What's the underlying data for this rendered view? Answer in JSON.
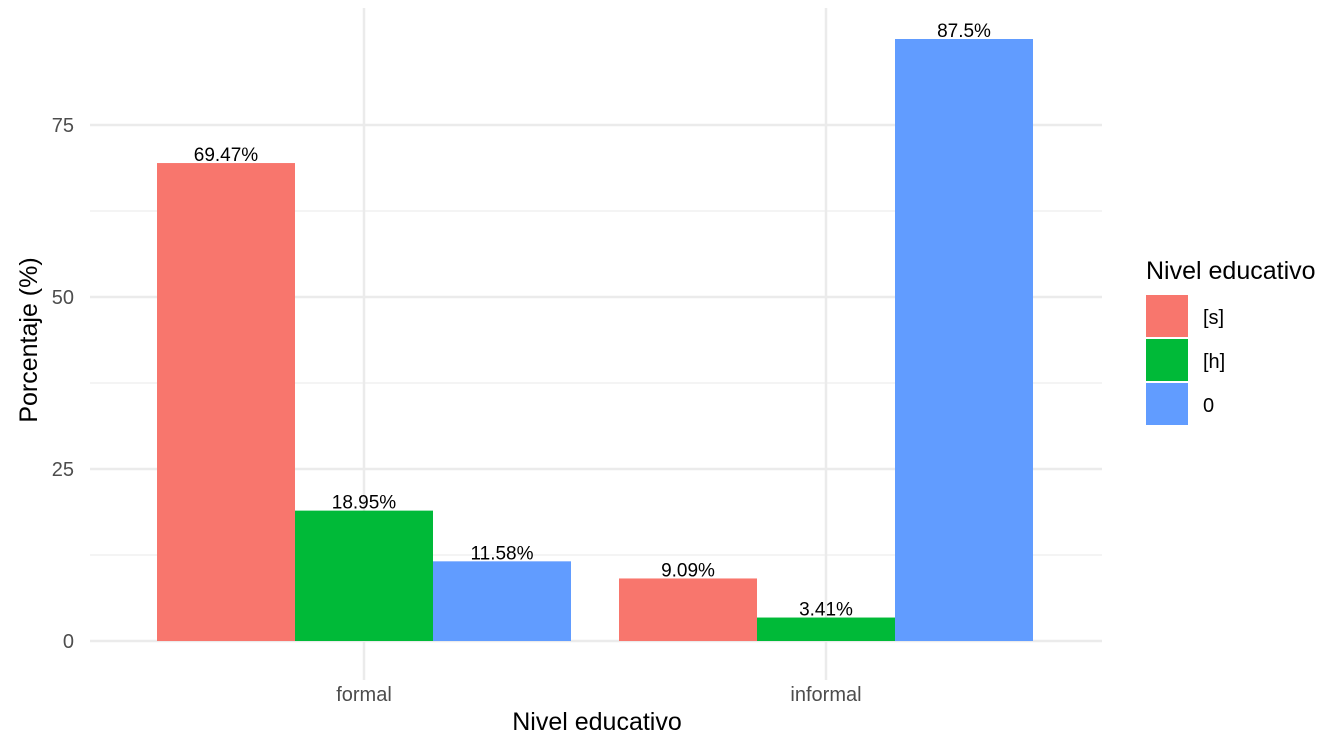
{
  "chart_data": {
    "type": "bar",
    "categories": [
      "formal",
      "informal"
    ],
    "series": [
      {
        "name": "[s]",
        "color": "#F8766D",
        "values": [
          69.47,
          9.09
        ],
        "labels": [
          "69.47%",
          "9.09%"
        ]
      },
      {
        "name": "[h]",
        "color": "#00BA38",
        "values": [
          18.95,
          3.41
        ],
        "labels": [
          "18.95%",
          "3.41%"
        ]
      },
      {
        "name": "0",
        "color": "#619CFF",
        "values": [
          11.58,
          87.5
        ],
        "labels": [
          "11.58%",
          "87.5%"
        ]
      }
    ],
    "xlabel": "Nivel educativo",
    "ylabel": "Porcentaje (%)",
    "ylim": [
      0,
      87.5
    ],
    "yticks": [
      0,
      25,
      50,
      75
    ],
    "grid": true,
    "legend": {
      "title": "Nivel educativo",
      "placement": "right"
    }
  }
}
